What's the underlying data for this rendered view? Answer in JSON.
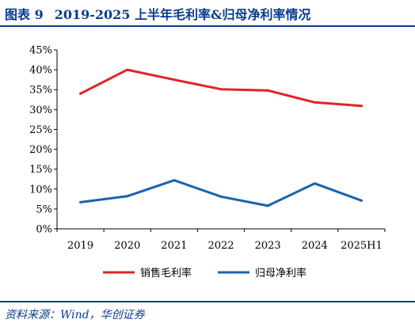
{
  "figure_number": "图表 9",
  "title": "2019-2025 上半年毛利率&归母净利率情况",
  "source": "资料来源：Wind，华创证券",
  "colors": {
    "accent": "#0a3c8a",
    "gross": "#e0232b",
    "net": "#1a62b0"
  },
  "chart_data": {
    "type": "line",
    "categories": [
      "2019",
      "2020",
      "2021",
      "2022",
      "2023",
      "2024",
      "2025H1"
    ],
    "series": [
      {
        "name": "销售毛利率",
        "color": "#e0232b",
        "values": [
          34.0,
          40.0,
          37.5,
          35.1,
          34.8,
          31.8,
          30.9
        ]
      },
      {
        "name": "归母净利率",
        "color": "#1a62b0",
        "values": [
          6.7,
          8.2,
          12.2,
          8.1,
          5.8,
          11.4,
          7.1
        ]
      }
    ],
    "yticks": [
      "0%",
      "5%",
      "10%",
      "15%",
      "20%",
      "25%",
      "30%",
      "35%",
      "40%",
      "45%"
    ],
    "ylim": [
      0,
      45
    ],
    "legend": "bottom",
    "grid": false
  }
}
